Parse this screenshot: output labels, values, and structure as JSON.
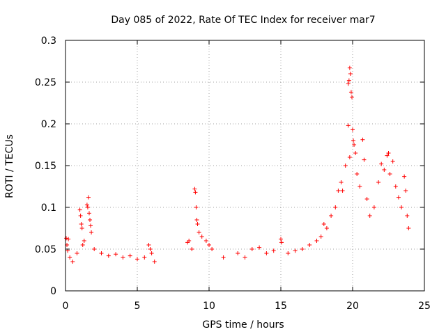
{
  "chart_data": {
    "type": "scatter",
    "title": "Day 085 of 2022, Rate Of TEC Index for receiver mar7",
    "xlabel": "GPS time / hours",
    "ylabel": "ROTI / TECUs",
    "xlim": [
      0,
      25
    ],
    "ylim": [
      0,
      0.3
    ],
    "x_ticks": [
      0,
      5,
      10,
      15,
      20,
      25
    ],
    "x_tick_labels": [
      "0",
      "5",
      "10",
      "15",
      "20",
      "25"
    ],
    "y_ticks": [
      0,
      0.05,
      0.1,
      0.15,
      0.2,
      0.25,
      0.3
    ],
    "y_tick_labels": [
      "0",
      "0.05",
      "0.1",
      "0.15",
      "0.2",
      "0.25",
      "0.3"
    ],
    "grid": true,
    "marker": "plus",
    "color": "#ff0000",
    "series": [
      {
        "points": [
          [
            0.05,
            0.063
          ],
          [
            0.1,
            0.055
          ],
          [
            0.15,
            0.048
          ],
          [
            0.2,
            0.062
          ],
          [
            0.3,
            0.04
          ],
          [
            0.5,
            0.035
          ],
          [
            0.8,
            0.045
          ],
          [
            1.0,
            0.097
          ],
          [
            1.05,
            0.09
          ],
          [
            1.1,
            0.08
          ],
          [
            1.15,
            0.075
          ],
          [
            1.2,
            0.055
          ],
          [
            1.3,
            0.06
          ],
          [
            1.5,
            0.103
          ],
          [
            1.55,
            0.1
          ],
          [
            1.6,
            0.112
          ],
          [
            1.65,
            0.093
          ],
          [
            1.7,
            0.085
          ],
          [
            1.75,
            0.078
          ],
          [
            1.8,
            0.07
          ],
          [
            2.0,
            0.05
          ],
          [
            2.5,
            0.045
          ],
          [
            3.0,
            0.042
          ],
          [
            3.5,
            0.044
          ],
          [
            4.0,
            0.04
          ],
          [
            4.5,
            0.042
          ],
          [
            5.0,
            0.038
          ],
          [
            5.5,
            0.04
          ],
          [
            5.8,
            0.055
          ],
          [
            5.9,
            0.05
          ],
          [
            6.0,
            0.045
          ],
          [
            6.2,
            0.035
          ],
          [
            8.5,
            0.058
          ],
          [
            8.6,
            0.06
          ],
          [
            8.8,
            0.05
          ],
          [
            9.0,
            0.122
          ],
          [
            9.05,
            0.118
          ],
          [
            9.1,
            0.1
          ],
          [
            9.15,
            0.085
          ],
          [
            9.2,
            0.08
          ],
          [
            9.3,
            0.07
          ],
          [
            9.5,
            0.065
          ],
          [
            9.8,
            0.06
          ],
          [
            10.0,
            0.055
          ],
          [
            10.2,
            0.05
          ],
          [
            11.0,
            0.04
          ],
          [
            12.0,
            0.045
          ],
          [
            12.5,
            0.04
          ],
          [
            13.0,
            0.05
          ],
          [
            13.5,
            0.052
          ],
          [
            14.0,
            0.045
          ],
          [
            14.5,
            0.048
          ],
          [
            15.0,
            0.062
          ],
          [
            15.05,
            0.058
          ],
          [
            15.5,
            0.045
          ],
          [
            16.0,
            0.048
          ],
          [
            16.5,
            0.05
          ],
          [
            17.0,
            0.055
          ],
          [
            17.5,
            0.06
          ],
          [
            17.8,
            0.065
          ],
          [
            18.0,
            0.08
          ],
          [
            18.2,
            0.075
          ],
          [
            18.5,
            0.09
          ],
          [
            18.8,
            0.1
          ],
          [
            19.0,
            0.12
          ],
          [
            19.2,
            0.13
          ],
          [
            19.3,
            0.12
          ],
          [
            19.5,
            0.15
          ],
          [
            19.7,
            0.248
          ],
          [
            19.75,
            0.252
          ],
          [
            19.8,
            0.267
          ],
          [
            19.85,
            0.26
          ],
          [
            19.9,
            0.238
          ],
          [
            19.95,
            0.232
          ],
          [
            19.7,
            0.198
          ],
          [
            19.8,
            0.16
          ],
          [
            20.0,
            0.193
          ],
          [
            20.05,
            0.18
          ],
          [
            20.1,
            0.175
          ],
          [
            20.2,
            0.165
          ],
          [
            20.3,
            0.14
          ],
          [
            20.5,
            0.125
          ],
          [
            20.7,
            0.181
          ],
          [
            20.8,
            0.157
          ],
          [
            21.0,
            0.11
          ],
          [
            21.2,
            0.09
          ],
          [
            21.5,
            0.1
          ],
          [
            21.8,
            0.13
          ],
          [
            22.0,
            0.152
          ],
          [
            22.2,
            0.145
          ],
          [
            22.4,
            0.162
          ],
          [
            22.5,
            0.165
          ],
          [
            22.6,
            0.14
          ],
          [
            22.8,
            0.155
          ],
          [
            23.0,
            0.125
          ],
          [
            23.2,
            0.112
          ],
          [
            23.4,
            0.1
          ],
          [
            23.6,
            0.137
          ],
          [
            23.7,
            0.12
          ],
          [
            23.8,
            0.09
          ],
          [
            23.9,
            0.075
          ]
        ]
      }
    ]
  }
}
